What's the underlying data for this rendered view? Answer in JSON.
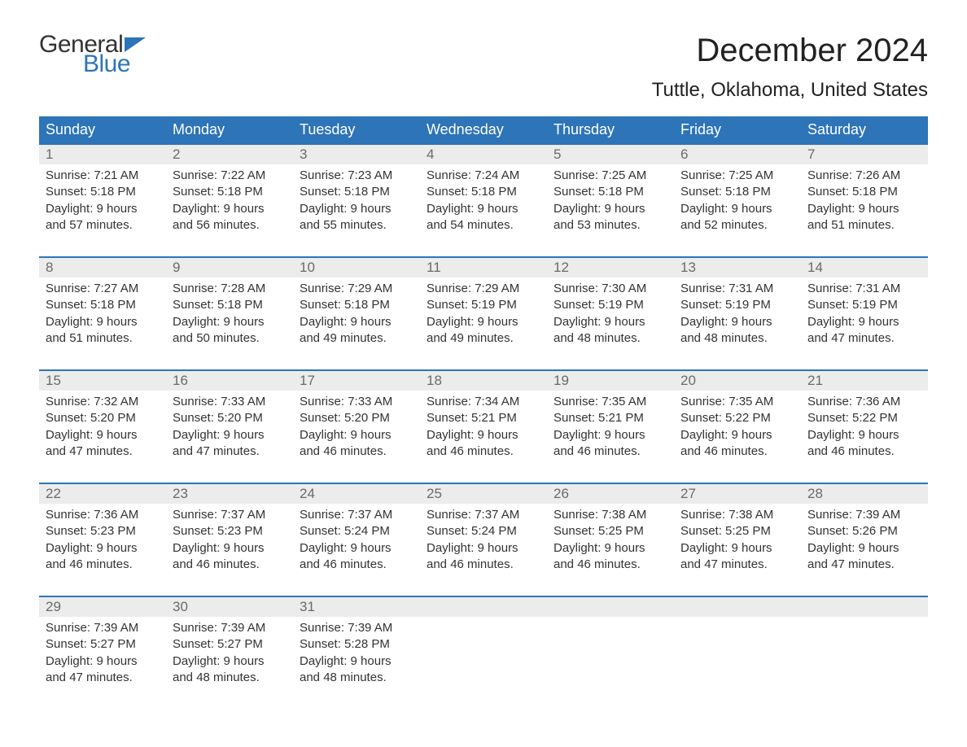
{
  "logo": {
    "text_top": "General",
    "text_bottom": "Blue",
    "accent_color": "#2d74b8"
  },
  "title": "December 2024",
  "location": "Tuttle, Oklahoma, United States",
  "colors": {
    "header_bg": "#2d74b8",
    "header_text": "#ffffff",
    "daynum_bg": "#ececec",
    "daynum_text": "#6a6a6a",
    "body_text": "#333333",
    "rule": "#2d74b8",
    "page_bg": "#ffffff"
  },
  "day_labels": [
    "Sunday",
    "Monday",
    "Tuesday",
    "Wednesday",
    "Thursday",
    "Friday",
    "Saturday"
  ],
  "label_sunrise": "Sunrise: ",
  "label_sunset": "Sunset: ",
  "label_daylight_prefix": "Daylight: ",
  "weeks": [
    [
      {
        "n": "1",
        "sunrise": "7:21 AM",
        "sunset": "5:18 PM",
        "daylight": "9 hours and 57 minutes."
      },
      {
        "n": "2",
        "sunrise": "7:22 AM",
        "sunset": "5:18 PM",
        "daylight": "9 hours and 56 minutes."
      },
      {
        "n": "3",
        "sunrise": "7:23 AM",
        "sunset": "5:18 PM",
        "daylight": "9 hours and 55 minutes."
      },
      {
        "n": "4",
        "sunrise": "7:24 AM",
        "sunset": "5:18 PM",
        "daylight": "9 hours and 54 minutes."
      },
      {
        "n": "5",
        "sunrise": "7:25 AM",
        "sunset": "5:18 PM",
        "daylight": "9 hours and 53 minutes."
      },
      {
        "n": "6",
        "sunrise": "7:25 AM",
        "sunset": "5:18 PM",
        "daylight": "9 hours and 52 minutes."
      },
      {
        "n": "7",
        "sunrise": "7:26 AM",
        "sunset": "5:18 PM",
        "daylight": "9 hours and 51 minutes."
      }
    ],
    [
      {
        "n": "8",
        "sunrise": "7:27 AM",
        "sunset": "5:18 PM",
        "daylight": "9 hours and 51 minutes."
      },
      {
        "n": "9",
        "sunrise": "7:28 AM",
        "sunset": "5:18 PM",
        "daylight": "9 hours and 50 minutes."
      },
      {
        "n": "10",
        "sunrise": "7:29 AM",
        "sunset": "5:18 PM",
        "daylight": "9 hours and 49 minutes."
      },
      {
        "n": "11",
        "sunrise": "7:29 AM",
        "sunset": "5:19 PM",
        "daylight": "9 hours and 49 minutes."
      },
      {
        "n": "12",
        "sunrise": "7:30 AM",
        "sunset": "5:19 PM",
        "daylight": "9 hours and 48 minutes."
      },
      {
        "n": "13",
        "sunrise": "7:31 AM",
        "sunset": "5:19 PM",
        "daylight": "9 hours and 48 minutes."
      },
      {
        "n": "14",
        "sunrise": "7:31 AM",
        "sunset": "5:19 PM",
        "daylight": "9 hours and 47 minutes."
      }
    ],
    [
      {
        "n": "15",
        "sunrise": "7:32 AM",
        "sunset": "5:20 PM",
        "daylight": "9 hours and 47 minutes."
      },
      {
        "n": "16",
        "sunrise": "7:33 AM",
        "sunset": "5:20 PM",
        "daylight": "9 hours and 47 minutes."
      },
      {
        "n": "17",
        "sunrise": "7:33 AM",
        "sunset": "5:20 PM",
        "daylight": "9 hours and 46 minutes."
      },
      {
        "n": "18",
        "sunrise": "7:34 AM",
        "sunset": "5:21 PM",
        "daylight": "9 hours and 46 minutes."
      },
      {
        "n": "19",
        "sunrise": "7:35 AM",
        "sunset": "5:21 PM",
        "daylight": "9 hours and 46 minutes."
      },
      {
        "n": "20",
        "sunrise": "7:35 AM",
        "sunset": "5:22 PM",
        "daylight": "9 hours and 46 minutes."
      },
      {
        "n": "21",
        "sunrise": "7:36 AM",
        "sunset": "5:22 PM",
        "daylight": "9 hours and 46 minutes."
      }
    ],
    [
      {
        "n": "22",
        "sunrise": "7:36 AM",
        "sunset": "5:23 PM",
        "daylight": "9 hours and 46 minutes."
      },
      {
        "n": "23",
        "sunrise": "7:37 AM",
        "sunset": "5:23 PM",
        "daylight": "9 hours and 46 minutes."
      },
      {
        "n": "24",
        "sunrise": "7:37 AM",
        "sunset": "5:24 PM",
        "daylight": "9 hours and 46 minutes."
      },
      {
        "n": "25",
        "sunrise": "7:37 AM",
        "sunset": "5:24 PM",
        "daylight": "9 hours and 46 minutes."
      },
      {
        "n": "26",
        "sunrise": "7:38 AM",
        "sunset": "5:25 PM",
        "daylight": "9 hours and 46 minutes."
      },
      {
        "n": "27",
        "sunrise": "7:38 AM",
        "sunset": "5:25 PM",
        "daylight": "9 hours and 47 minutes."
      },
      {
        "n": "28",
        "sunrise": "7:39 AM",
        "sunset": "5:26 PM",
        "daylight": "9 hours and 47 minutes."
      }
    ],
    [
      {
        "n": "29",
        "sunrise": "7:39 AM",
        "sunset": "5:27 PM",
        "daylight": "9 hours and 47 minutes."
      },
      {
        "n": "30",
        "sunrise": "7:39 AM",
        "sunset": "5:27 PM",
        "daylight": "9 hours and 48 minutes."
      },
      {
        "n": "31",
        "sunrise": "7:39 AM",
        "sunset": "5:28 PM",
        "daylight": "9 hours and 48 minutes."
      },
      null,
      null,
      null,
      null
    ]
  ]
}
